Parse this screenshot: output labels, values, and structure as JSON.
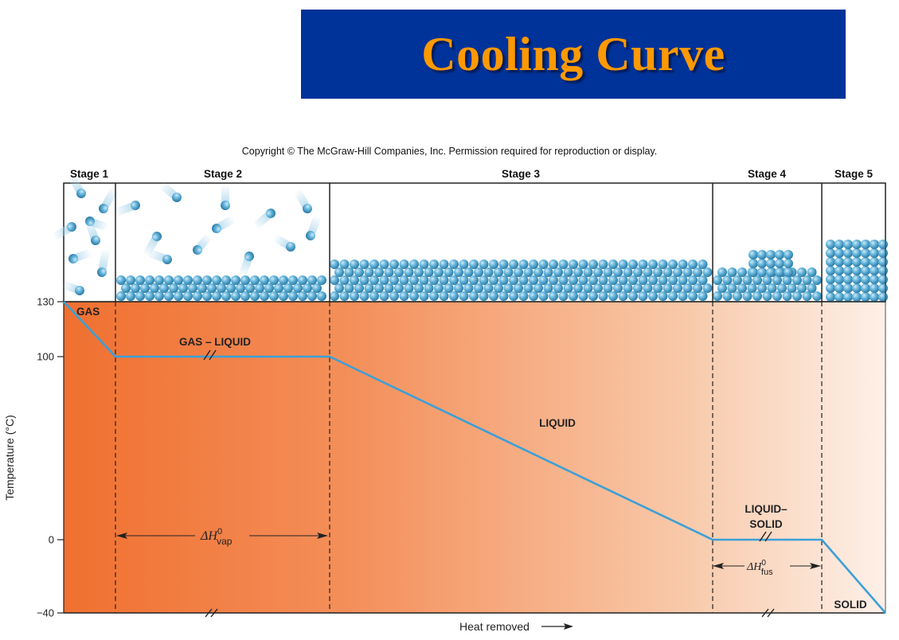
{
  "title": "Cooling Curve",
  "copyright": "Copyright © The McGraw-Hill Companies, Inc. Permission required for reproduction or display.",
  "colors": {
    "banner": "#003399",
    "title_text": "#ff9900",
    "curve": "#3ba0d8",
    "particle": "#5ab0d8",
    "heat_fill": "#f07030"
  },
  "chart_data": {
    "type": "line",
    "title": "",
    "xlabel": "Heat removed",
    "ylabel": "Temperature (°C)",
    "ylim": [
      -40,
      130
    ],
    "yticks": [
      130,
      100,
      0,
      -40
    ],
    "stages": [
      "Stage 1",
      "Stage 2",
      "Stage 3",
      "Stage 4",
      "Stage 5"
    ],
    "series": [
      {
        "points": [
          {
            "stage_boundary": 0,
            "y": 130
          },
          {
            "stage_boundary": 1,
            "y": 100
          },
          {
            "stage_boundary": 2,
            "y": 100
          },
          {
            "stage_boundary": 3,
            "y": 0
          },
          {
            "stage_boundary": 4,
            "y": 0
          },
          {
            "stage_boundary": 5,
            "y": -40
          }
        ]
      }
    ],
    "region_labels": {
      "gas": "GAS",
      "gas_liquid": "GAS – LIQUID",
      "liquid": "LIQUID",
      "liquid_solid_1": "LIQUID–",
      "liquid_solid_2": "SOLID",
      "solid": "SOLID"
    },
    "annotations": {
      "vap": {
        "delta": "ΔH",
        "sup": "0",
        "sub": "vap"
      },
      "fus": {
        "delta": "ΔH",
        "sup": "0",
        "sub": "fus"
      }
    }
  }
}
